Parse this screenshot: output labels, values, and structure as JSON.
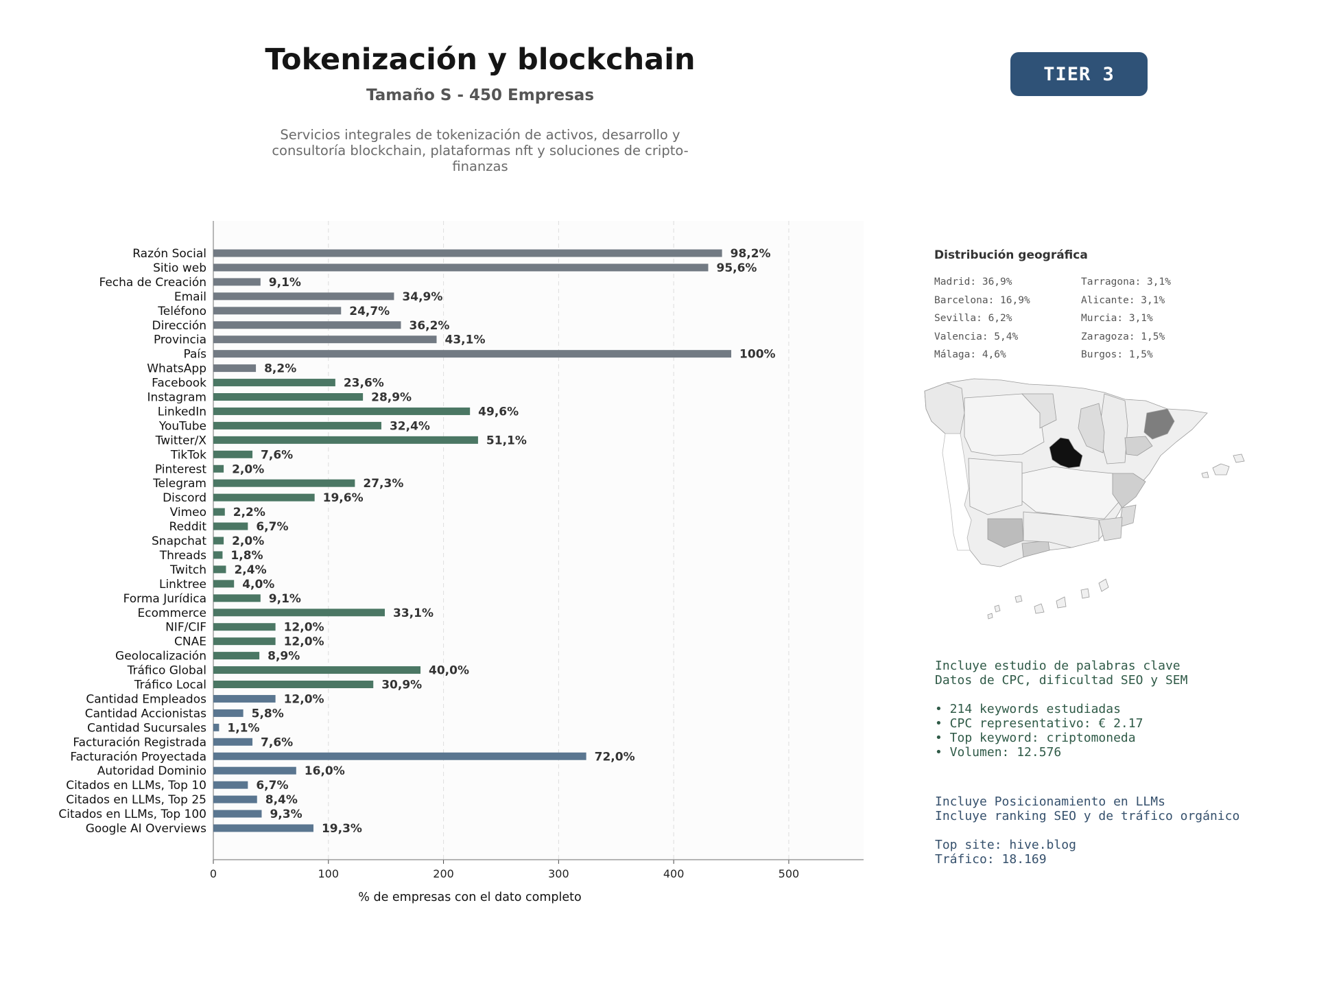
{
  "header": {
    "title": "Tokenización y blockchain",
    "subtitle": "Tamaño S - 450 Empresas",
    "description": "Servicios integrales de tokenización de activos, desarrollo y consultoría blockchain, plataformas nft y soluciones de cripto-finanzas",
    "tier": "TIER 3"
  },
  "colors": {
    "gray_group": "#727a83",
    "green_group": "#4b7764",
    "blue_group": "#5a7690",
    "tier_badge": "#2f5277"
  },
  "chart_data": {
    "type": "bar",
    "orientation": "horizontal",
    "xlabel": "% de empresas con el dato completo",
    "xlim": [
      0,
      565
    ],
    "xticks": [
      0,
      100,
      200,
      300,
      400,
      500
    ],
    "grid": true,
    "categories": [
      "Razón Social",
      "Sitio web",
      "Fecha de Creación",
      "Email",
      "Teléfono",
      "Dirección",
      "Provincia",
      "País",
      "WhatsApp",
      "Facebook",
      "Instagram",
      "LinkedIn",
      "YouTube",
      "Twitter/X",
      "TikTok",
      "Pinterest",
      "Telegram",
      "Discord",
      "Vimeo",
      "Reddit",
      "Snapchat",
      "Threads",
      "Twitch",
      "Linktree",
      "Forma Jurídica",
      "Ecommerce",
      "NIF/CIF",
      "CNAE",
      "Geolocalización",
      "Tráfico Global",
      "Tráfico Local",
      "Cantidad Empleados",
      "Cantidad Accionistas",
      "Cantidad Sucursales",
      "Facturación Registrada",
      "Facturación Proyectada",
      "Autoridad Dominio",
      "Citados en LLMs, Top 10",
      "Citados en LLMs, Top 25",
      "Citados en LLMs, Top 100",
      "Google AI Overviews"
    ],
    "values": [
      442,
      430,
      41,
      157,
      111,
      163,
      194,
      450,
      37,
      106,
      130,
      223,
      146,
      230,
      34,
      9,
      123,
      88,
      10,
      30,
      9,
      8,
      11,
      18,
      41,
      149,
      54,
      54,
      40,
      180,
      139,
      54,
      26,
      5,
      34,
      324,
      72,
      30,
      38,
      42,
      87
    ],
    "labels": [
      "98,2%",
      "95,6%",
      "9,1%",
      "34,9%",
      "24,7%",
      "36,2%",
      "43,1%",
      "100%",
      "8,2%",
      "23,6%",
      "28,9%",
      "49,6%",
      "32,4%",
      "51,1%",
      "7,6%",
      "2,0%",
      "27,3%",
      "19,6%",
      "2,2%",
      "6,7%",
      "2,0%",
      "1,8%",
      "2,4%",
      "4,0%",
      "9,1%",
      "33,1%",
      "12,0%",
      "12,0%",
      "8,9%",
      "40,0%",
      "30,9%",
      "12,0%",
      "5,8%",
      "1,1%",
      "7,6%",
      "72,0%",
      "16,0%",
      "6,7%",
      "8,4%",
      "9,3%",
      "19,3%"
    ],
    "groups": [
      "gray",
      "gray",
      "gray",
      "gray",
      "gray",
      "gray",
      "gray",
      "gray",
      "gray",
      "green",
      "green",
      "green",
      "green",
      "green",
      "green",
      "green",
      "green",
      "green",
      "green",
      "green",
      "green",
      "green",
      "green",
      "green",
      "green",
      "green",
      "green",
      "green",
      "green",
      "green",
      "green",
      "blue",
      "blue",
      "blue",
      "blue",
      "blue",
      "blue",
      "blue",
      "blue",
      "blue",
      "blue"
    ]
  },
  "geo": {
    "title": "Distribución geográfica",
    "left_column": [
      "Madrid: 36,9%",
      "Barcelona: 16,9%",
      "Sevilla: 6,2%",
      "Valencia: 5,4%",
      "Málaga: 4,6%"
    ],
    "right_column": [
      "Tarragona: 3,1%",
      "Alicante: 3,1%",
      "Murcia: 3,1%",
      "Zaragoza: 1,5%",
      "Burgos: 1,5%"
    ]
  },
  "seo_block": [
    "Incluye estudio de palabras clave",
    "Datos de CPC, dificultad SEO y SEM",
    "",
    "• 214 keywords estudiadas",
    "• CPC representativo: € 2.17",
    "• Top keyword: criptomoneda",
    "• Volumen: 12.576"
  ],
  "llm_block": [
    "Incluye Posicionamiento en LLMs",
    "Incluye ranking SEO y de tráfico orgánico",
    "",
    "Top site: hive.blog",
    "Tráfico: 18.169"
  ]
}
